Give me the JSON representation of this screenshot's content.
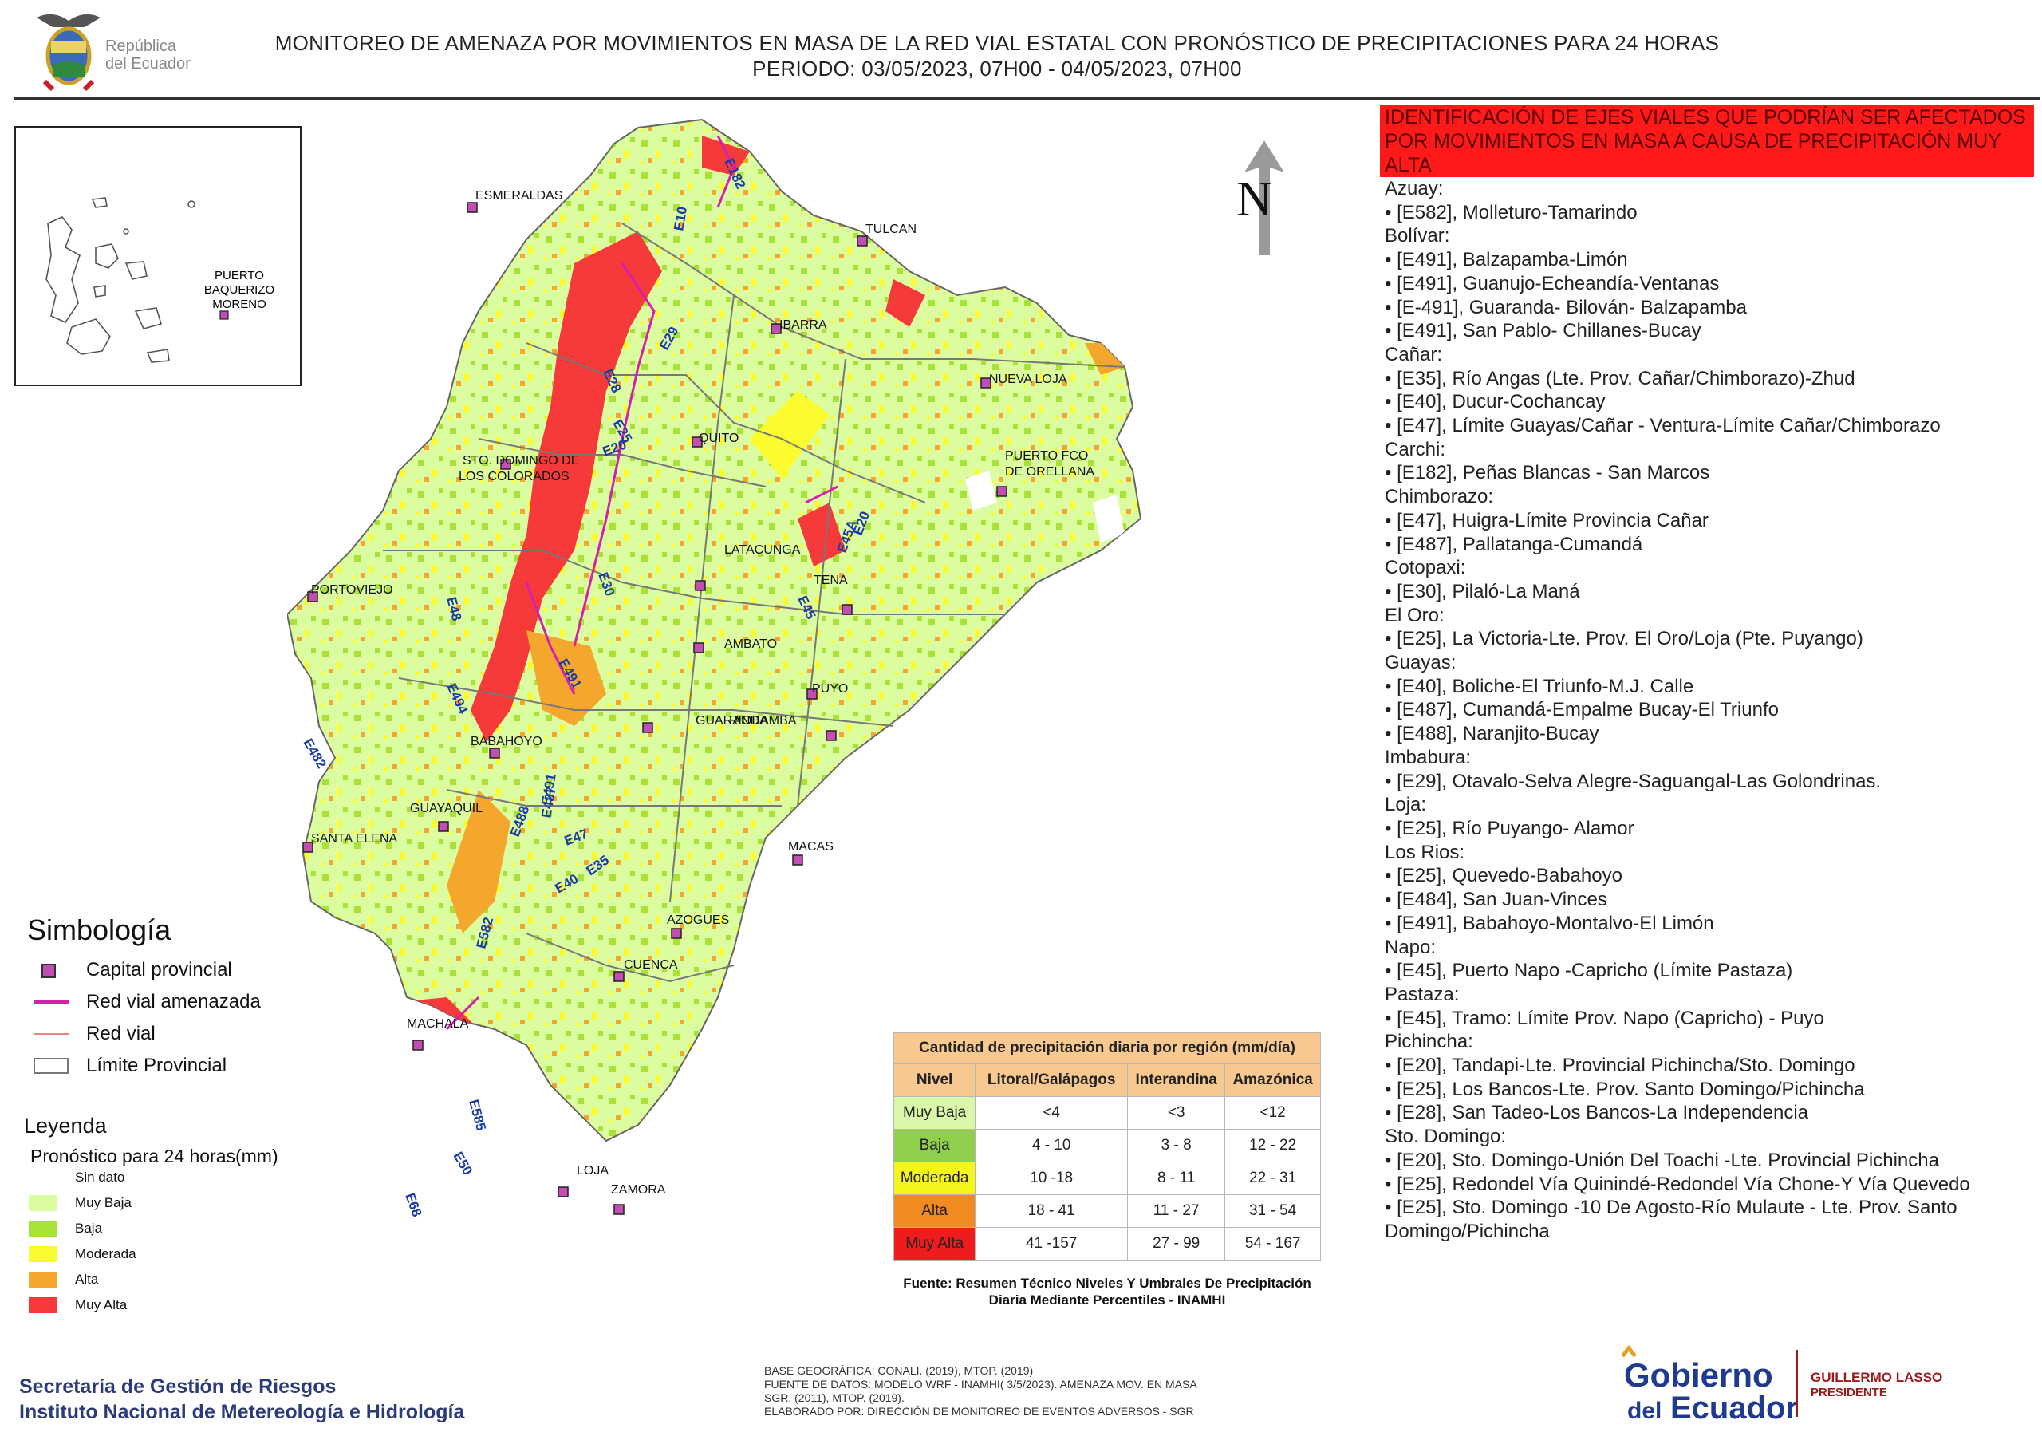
{
  "header": {
    "title_line1": "MONITOREO DE AMENAZA POR MOVIMIENTOS EN MASA DE LA RED VIAL  ESTATAL  CON PRONÓSTICO  DE  PRECIPITACIONES PARA 24 HORAS",
    "title_line2": "PERIODO: 03/05/2023, 07H00 - 04/05/2023, 07H00",
    "logo_text_1": "República",
    "logo_text_2": "del Ecuador"
  },
  "inset": {
    "label_1": "PUERTO",
    "label_2": "BAQUERIZO",
    "label_3": "MORENO"
  },
  "map": {
    "north_label": "N",
    "cities": [
      {
        "name": "ESMERALDAS"
      },
      {
        "name": "TULCAN"
      },
      {
        "name": "IBARRA"
      },
      {
        "name": "NUEVA LOJA"
      },
      {
        "name": "QUITO"
      },
      {
        "name": "STO. DOMINGO DE"
      },
      {
        "name": "LOS COLORADOS"
      },
      {
        "name": "PUERTO FCO"
      },
      {
        "name": "DE ORELLANA"
      },
      {
        "name": "LATACUNGA"
      },
      {
        "name": "PORTOVIEJO"
      },
      {
        "name": "TENA"
      },
      {
        "name": "AMBATO"
      },
      {
        "name": "PUYO"
      },
      {
        "name": "GUARANDA"
      },
      {
        "name": "RIOBAMBA"
      },
      {
        "name": "BABAHOYO"
      },
      {
        "name": "SANTA ELENA"
      },
      {
        "name": "GUAYAQUIL"
      },
      {
        "name": "MACAS"
      },
      {
        "name": "AZOGUES"
      },
      {
        "name": "CUENCA"
      },
      {
        "name": "MACHALA"
      },
      {
        "name": "LOJA"
      },
      {
        "name": "ZAMORA"
      }
    ],
    "road_labels": [
      "E182",
      "E10",
      "E29",
      "E28",
      "E25",
      "E20",
      "E30",
      "E48",
      "E491",
      "E494",
      "E482",
      "E491",
      "E487",
      "E488",
      "E47",
      "E35",
      "E40",
      "E582",
      "E585",
      "E50",
      "E68",
      "E20",
      "E45A",
      "E45"
    ]
  },
  "roads_panel": {
    "title": "IDENTIFICACIÓN DE EJES VIALES QUE PODRÍAN SER AFECTADOS POR MOVIMIENTOS EN MASA A CAUSA DE PRECIPITACIÓN MUY ALTA",
    "provinces": [
      {
        "name": "Azuay:",
        "roads": [
          "• [E582], Molleturo-Tamarindo"
        ]
      },
      {
        "name": "Bolívar:",
        "roads": [
          "• [E491], Balzapamba-Limón",
          "• [E491], Guanujo-Echeandía-Ventanas",
          "• [E-491], Guaranda- Bilován- Balzapamba",
          "• [E491], San Pablo- Chillanes-Bucay"
        ]
      },
      {
        "name": "Cañar:",
        "roads": [
          "• [E35], Río Angas (Lte. Prov. Cañar/Chimborazo)-Zhud",
          "• [E40], Ducur-Cochancay",
          "• [E47], Límite Guayas/Cañar - Ventura-Límite Cañar/Chimborazo"
        ]
      },
      {
        "name": "Carchi:",
        "roads": [
          "• [E182], Peñas Blancas - San Marcos"
        ]
      },
      {
        "name": "Chimborazo:",
        "roads": [
          "• [E47], Huigra-Límite Provincia Cañar",
          "• [E487], Pallatanga-Cumandá"
        ]
      },
      {
        "name": "Cotopaxi:",
        "roads": [
          "• [E30], Pilaló-La Maná"
        ]
      },
      {
        "name": "El Oro:",
        "roads": [
          "• [E25], La Victoria-Lte. Prov. El Oro/Loja (Pte. Puyango)"
        ]
      },
      {
        "name": "Guayas:",
        "roads": [
          "• [E40], Boliche-El Triunfo-M.J. Calle",
          "• [E487], Cumandá-Empalme Bucay-El Triunfo",
          "• [E488], Naranjito-Bucay"
        ]
      },
      {
        "name": "Imbabura:",
        "roads": [
          "• [E29], Otavalo-Selva Alegre-Saguangal-Las Golondrinas."
        ]
      },
      {
        "name": "Loja:",
        "roads": [
          "• [E25], Río Puyango- Alamor"
        ]
      },
      {
        "name": "Los Rios:",
        "roads": [
          "• [E25], Quevedo-Babahoyo",
          "• [E484], San Juan-Vinces",
          "• [E491], Babahoyo-Montalvo-El Limón"
        ]
      },
      {
        "name": "Napo:",
        "roads": [
          "• [E45], Puerto Napo -Capricho (Límite Pastaza)"
        ]
      },
      {
        "name": "Pastaza:",
        "roads": [
          "• [E45], Tramo: Límite Prov. Napo (Capricho) - Puyo"
        ]
      },
      {
        "name": "Pichincha:",
        "roads": [
          "• [E20], Tandapi-Lte. Provincial Pichincha/Sto. Domingo",
          "• [E25], Los Bancos-Lte. Prov. Santo Domingo/Pichincha",
          "• [E28], San Tadeo-Los Bancos-La Independencia"
        ]
      },
      {
        "name": "Sto. Domingo:",
        "roads": [
          "• [E20], Sto. Domingo-Unión Del Toachi -Lte. Provincial Pichincha",
          "• [E25], Redondel Vía Quinindé-Redondel Vía Chone-Y Vía Quevedo",
          "• [E25], Sto. Domingo -10 De Agosto-Río Mulaute - Lte. Prov. Santo Domingo/Pichincha"
        ]
      }
    ]
  },
  "symbology": {
    "title": "Simbología",
    "items": [
      "Capital provincial",
      "Red vial amenazada",
      "Red vial",
      "Límite Provincial"
    ]
  },
  "legend": {
    "title": "Leyenda",
    "subtitle": "Pronóstico para 24 horas(mm)",
    "items": [
      {
        "label": "Sin dato",
        "color": "#ffffff"
      },
      {
        "label": "Muy Baja",
        "color": "#dcfca0"
      },
      {
        "label": "Baja",
        "color": "#a8e236"
      },
      {
        "label": "Moderada",
        "color": "#fbfb2e"
      },
      {
        "label": "Alta",
        "color": "#f4a72c"
      },
      {
        "label": "Muy Alta",
        "color": "#f63a3a"
      }
    ]
  },
  "precip_table": {
    "caption": "Cantidad de precipitación diaria por región (mm/día)",
    "headers": [
      "Nivel",
      "Litoral/Galápagos",
      "Interandina",
      "Amazónica"
    ],
    "rows": [
      {
        "level": "Muy Baja",
        "color": "#d9f7a8",
        "litoral": "<4",
        "interandina": "<3",
        "amazonica": "<12"
      },
      {
        "level": "Baja",
        "color": "#8fcf4c",
        "litoral": "4 - 10",
        "interandina": "3 - 8",
        "amazonica": "12 - 22"
      },
      {
        "level": "Moderada",
        "color": "#f5f51e",
        "litoral": "10 -18",
        "interandina": "8 - 11",
        "amazonica": "22 - 31"
      },
      {
        "level": "Alta",
        "color": "#f28a22",
        "litoral": "18 - 41",
        "interandina": "11 - 27",
        "amazonica": "31 - 54"
      },
      {
        "level": "Muy Alta",
        "color": "#ee1c1c",
        "litoral": "41 -157",
        "interandina": "27 - 99",
        "amazonica": "54 - 167"
      }
    ],
    "source": "Fuente: Resumen Técnico Niveles Y Umbrales De Precipitación Diaria Mediante Percentiles - INAMHI"
  },
  "credits": {
    "line1": "BASE GEOGRÁFICA: CONALI. (2019), MTOP. (2019)",
    "line2": "FUENTE DE DATOS: MODELO WRF - INAMHI( 3/5/2023).  AMENAZA MOV. EN MASA",
    "line3": "SGR. (2011), MTOP. (2019).",
    "line4": "ELABORADO POR: DIRECCIÓN DE MONITOREO DE EVENTOS ADVERSOS - SGR"
  },
  "agency": {
    "line1": "Secretaría de Gestión de Riesgos",
    "line2": "Instituto Nacional de Metereología e Hidrología"
  },
  "gobierno_logo": {
    "word1": "Gobierno",
    "word2": "del",
    "word3": "Ecuador",
    "name": "GUILLERMO LASSO",
    "role": "PRESIDENTE"
  }
}
